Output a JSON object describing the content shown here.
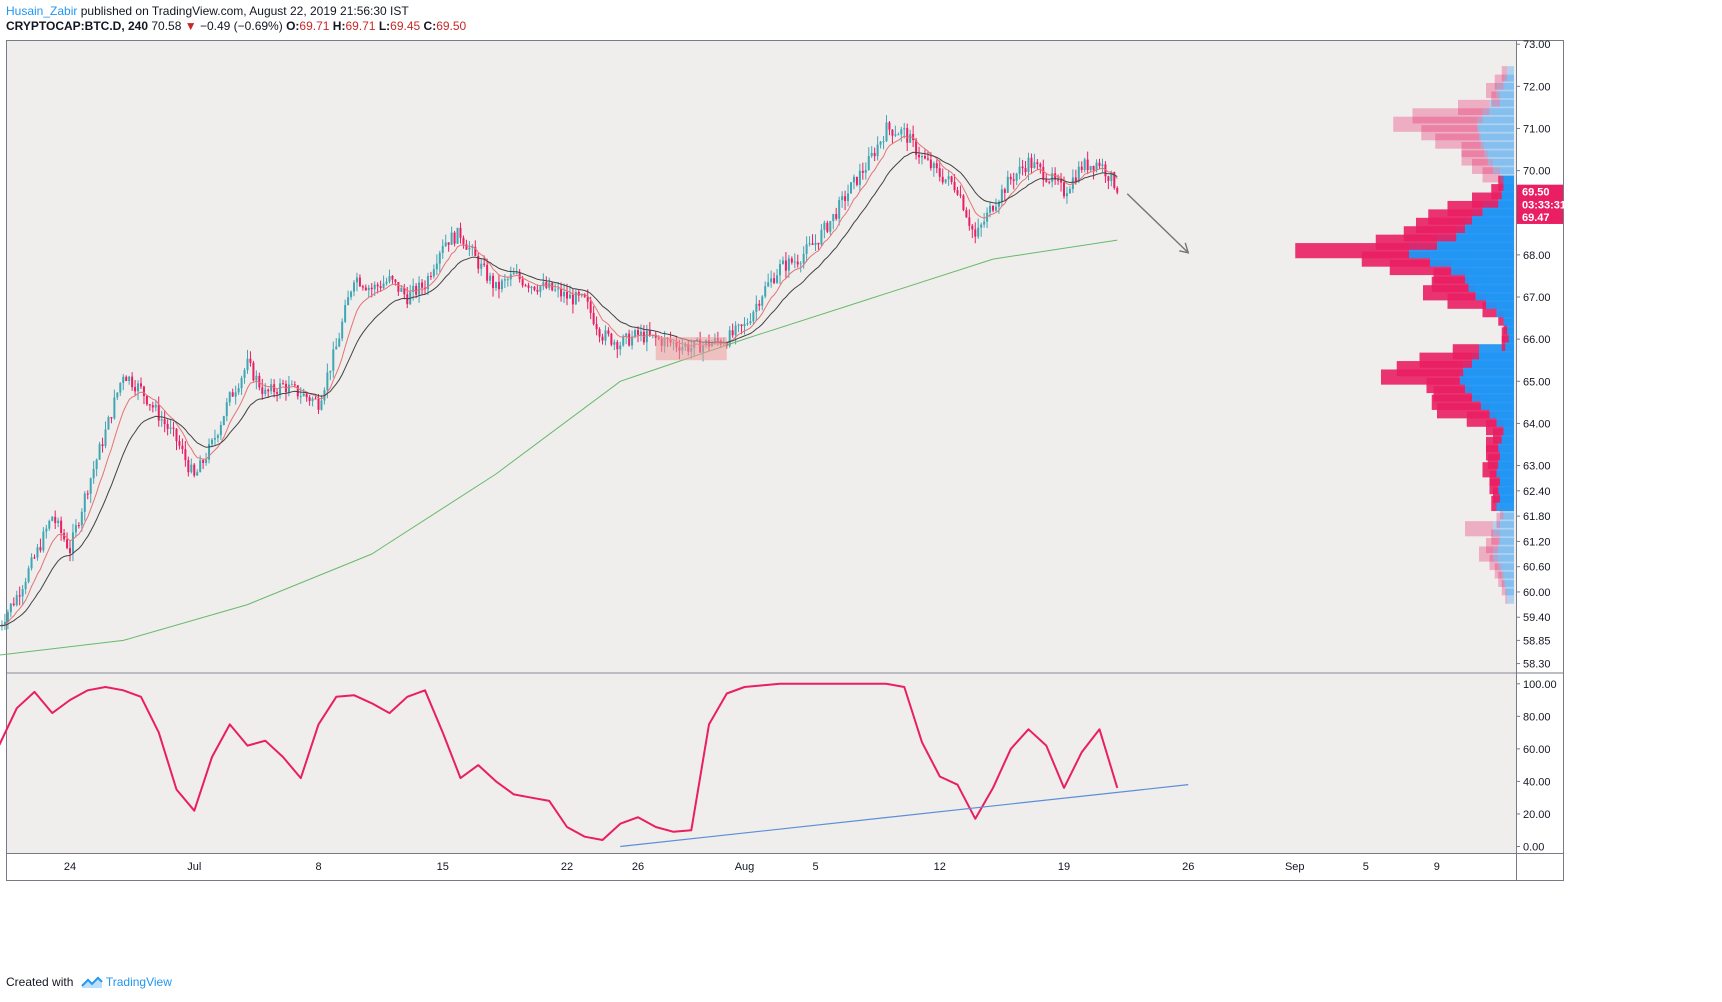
{
  "header": {
    "author": "Husain_Zabir",
    "published": "published on TradingView.com, August 22, 2019 21:56:30 IST",
    "symbol": "CRYPTOCAP:BTC.D, 240",
    "last": "70.58",
    "change": "−0.49 (−0.69%)",
    "open_label": "O:",
    "open": "69.71",
    "high_label": "H:",
    "high": "69.71",
    "low_label": "L:",
    "low": "69.45",
    "close_label": "C:",
    "close": "69.50"
  },
  "footer": {
    "created_with": "Created with",
    "brand": "TradingView"
  },
  "colors": {
    "up": "#26a69a",
    "up_candle": "#3fa7b3",
    "down": "#e91e63",
    "ema_fast": "#e57373",
    "ema_slow": "#424242",
    "ma_long": "#66bb6a",
    "oscillator": "#e91e63",
    "trendline": "#5b8fd8",
    "vp_up": "#2196f3",
    "vp_down": "#e91e63",
    "pane_bg": "#f0eded",
    "price_tag": "#e91e63"
  },
  "chart_data": [
    {
      "type": "candlestick",
      "title": "CRYPTOCAP:BTC.D, 240",
      "x_axis_labels": [
        "24",
        "Jul",
        "8",
        "15",
        "22",
        "26",
        "Aug",
        "5",
        "12",
        "19",
        "26",
        "Sep",
        "5",
        "9"
      ],
      "x_axis_dates": [
        "2019-06-24",
        "2019-07-01",
        "2019-07-08",
        "2019-07-15",
        "2019-07-22",
        "2019-07-26",
        "2019-08-01",
        "2019-08-05",
        "2019-08-12",
        "2019-08-19",
        "2019-08-26",
        "2019-09-01",
        "2019-09-05",
        "2019-09-09"
      ],
      "y_axis_labels": [
        "73.00",
        "72.00",
        "71.00",
        "70.00",
        "69.50",
        "68.00",
        "67.00",
        "66.00",
        "65.00",
        "64.00",
        "63.00",
        "62.40",
        "61.80",
        "61.20",
        "60.60",
        "60.00",
        "59.40",
        "58.85",
        "58.30"
      ],
      "ylim": [
        58.1,
        73.1
      ],
      "price_tags": [
        {
          "label": "69.50",
          "value": 69.5
        },
        {
          "label": "03:33:31",
          "value": 69.2
        },
        {
          "label": "69.47",
          "value": 68.9
        }
      ],
      "close_path": {
        "dates": [
          "2019-06-20",
          "2019-06-21",
          "2019-06-22",
          "2019-06-23",
          "2019-06-24",
          "2019-06-25",
          "2019-06-26",
          "2019-06-27",
          "2019-06-28",
          "2019-06-29",
          "2019-06-30",
          "2019-07-01",
          "2019-07-02",
          "2019-07-03",
          "2019-07-04",
          "2019-07-05",
          "2019-07-06",
          "2019-07-07",
          "2019-07-08",
          "2019-07-09",
          "2019-07-10",
          "2019-07-11",
          "2019-07-12",
          "2019-07-13",
          "2019-07-14",
          "2019-07-15",
          "2019-07-16",
          "2019-07-17",
          "2019-07-18",
          "2019-07-19",
          "2019-07-20",
          "2019-07-21",
          "2019-07-22",
          "2019-07-23",
          "2019-07-24",
          "2019-07-25",
          "2019-07-26",
          "2019-07-27",
          "2019-07-28",
          "2019-07-29",
          "2019-07-30",
          "2019-07-31",
          "2019-08-01",
          "2019-08-02",
          "2019-08-03",
          "2019-08-04",
          "2019-08-05",
          "2019-08-06",
          "2019-08-07",
          "2019-08-08",
          "2019-08-09",
          "2019-08-10",
          "2019-08-11",
          "2019-08-12",
          "2019-08-13",
          "2019-08-14",
          "2019-08-15",
          "2019-08-16",
          "2019-08-17",
          "2019-08-18",
          "2019-08-19",
          "2019-08-20",
          "2019-08-21",
          "2019-08-22"
        ],
        "values": [
          59.2,
          59.9,
          60.8,
          61.8,
          61.0,
          62.5,
          63.8,
          65.2,
          64.8,
          64.2,
          63.6,
          62.7,
          63.5,
          64.6,
          65.4,
          64.7,
          64.9,
          64.7,
          64.5,
          65.8,
          67.5,
          67.2,
          67.4,
          67.0,
          67.3,
          68.3,
          68.5,
          67.8,
          67.2,
          67.5,
          67.3,
          67.2,
          67.0,
          66.9,
          66.1,
          65.9,
          66.1,
          66.0,
          65.9,
          65.8,
          65.9,
          66.0,
          66.3,
          67.1,
          67.7,
          67.9,
          68.3,
          68.9,
          69.6,
          70.2,
          71.0,
          70.9,
          70.3,
          69.9,
          69.6,
          68.4,
          69.2,
          69.8,
          70.2,
          69.9,
          69.5,
          70.1,
          70.2,
          69.6
        ]
      },
      "moving_averages": [
        {
          "kind": "fast EMA",
          "color": "#e57373"
        },
        {
          "kind": "slow EMA",
          "color": "#424242"
        },
        {
          "kind": "long MA",
          "color": "#66bb6a",
          "dates": [
            "2019-06-20",
            "2019-06-27",
            "2019-07-04",
            "2019-07-11",
            "2019-07-18",
            "2019-07-25",
            "2019-08-01",
            "2019-08-08",
            "2019-08-15",
            "2019-08-22"
          ],
          "values": [
            58.5,
            58.85,
            59.7,
            60.9,
            62.8,
            65.0,
            66.0,
            66.95,
            67.9,
            68.35
          ]
        }
      ],
      "annotations": [
        {
          "kind": "box",
          "dates": [
            "2019-07-27",
            "2019-07-31"
          ],
          "values": [
            65.5,
            66.05
          ],
          "color": "#ef9a9a"
        },
        {
          "kind": "arrow",
          "dates": [
            "2019-08-22",
            "2019-08-26"
          ],
          "values": [
            69.45,
            68.05
          ],
          "color": "#757575"
        }
      ],
      "volume_profile_split": 61.95,
      "volume_profile": {
        "prices": [
          59.9,
          60.1,
          60.3,
          60.5,
          60.7,
          60.9,
          61.1,
          61.3,
          61.5,
          61.7,
          61.9,
          62.1,
          62.3,
          62.5,
          62.7,
          62.9,
          63.1,
          63.3,
          63.5,
          63.7,
          63.9,
          64.1,
          64.3,
          64.5,
          64.7,
          64.9,
          65.1,
          65.3,
          65.5,
          65.7,
          65.9,
          66.1,
          66.3,
          66.5,
          66.7,
          66.9,
          67.1,
          67.3,
          67.5,
          67.7,
          67.9,
          68.1,
          68.3,
          68.5,
          68.7,
          68.9,
          69.1,
          69.3,
          69.5,
          69.7,
          69.9,
          70.1,
          70.3,
          70.5,
          70.7,
          70.9,
          71.1,
          71.3,
          71.5,
          71.7,
          71.9,
          72.1,
          72.3
        ],
        "buy": [
          0.04,
          0.05,
          0.06,
          0.07,
          0.09,
          0.12,
          0.09,
          0.08,
          0.12,
          0.08,
          0.06,
          0.1,
          0.08,
          0.09,
          0.08,
          0.1,
          0.09,
          0.08,
          0.09,
          0.07,
          0.06,
          0.1,
          0.14,
          0.19,
          0.24,
          0.28,
          0.31,
          0.29,
          0.24,
          0.2,
          0.05,
          0.03,
          0.04,
          0.06,
          0.1,
          0.16,
          0.22,
          0.26,
          0.28,
          0.36,
          0.48,
          0.6,
          0.44,
          0.33,
          0.28,
          0.24,
          0.18,
          0.09,
          0.07,
          0.06,
          0.08,
          0.12,
          0.15,
          0.17,
          0.19,
          0.2,
          0.21,
          0.18,
          0.14,
          0.08,
          0.1,
          0.06,
          0.04
        ],
        "sell": [
          0.01,
          0.02,
          0.03,
          0.04,
          0.05,
          0.08,
          0.07,
          0.05,
          0.16,
          0.02,
          0.02,
          0.03,
          0.04,
          0.05,
          0.06,
          0.08,
          0.06,
          0.08,
          0.07,
          0.05,
          0.1,
          0.17,
          0.3,
          0.28,
          0.22,
          0.22,
          0.45,
          0.38,
          0.3,
          0.15,
          0.02,
          0.04,
          0.02,
          0.03,
          0.08,
          0.22,
          0.3,
          0.21,
          0.18,
          0.35,
          0.39,
          0.65,
          0.35,
          0.3,
          0.28,
          0.25,
          0.2,
          0.15,
          0.06,
          0.03,
          0.1,
          0.12,
          0.15,
          0.13,
          0.26,
          0.33,
          0.48,
          0.4,
          0.18,
          0.05,
          0.06,
          0.05,
          0.03
        ]
      }
    },
    {
      "type": "line",
      "name": "oscillator",
      "y_axis_labels": [
        "100.00",
        "80.00",
        "60.00",
        "40.00",
        "20.00",
        "0.00"
      ],
      "ylim": [
        -4,
        106
      ],
      "dates": [
        "2019-06-20",
        "2019-06-21",
        "2019-06-22",
        "2019-06-23",
        "2019-06-24",
        "2019-06-25",
        "2019-06-26",
        "2019-06-27",
        "2019-06-28",
        "2019-06-29",
        "2019-06-30",
        "2019-07-01",
        "2019-07-02",
        "2019-07-03",
        "2019-07-04",
        "2019-07-05",
        "2019-07-06",
        "2019-07-07",
        "2019-07-08",
        "2019-07-09",
        "2019-07-10",
        "2019-07-11",
        "2019-07-12",
        "2019-07-13",
        "2019-07-14",
        "2019-07-15",
        "2019-07-16",
        "2019-07-17",
        "2019-07-18",
        "2019-07-19",
        "2019-07-20",
        "2019-07-21",
        "2019-07-22",
        "2019-07-23",
        "2019-07-24",
        "2019-07-25",
        "2019-07-26",
        "2019-07-27",
        "2019-07-28",
        "2019-07-29",
        "2019-07-30",
        "2019-07-31",
        "2019-08-01",
        "2019-08-02",
        "2019-08-03",
        "2019-08-04",
        "2019-08-05",
        "2019-08-06",
        "2019-08-07",
        "2019-08-08",
        "2019-08-09",
        "2019-08-10",
        "2019-08-11",
        "2019-08-12",
        "2019-08-13",
        "2019-08-14",
        "2019-08-15",
        "2019-08-16",
        "2019-08-17",
        "2019-08-18",
        "2019-08-19",
        "2019-08-20",
        "2019-08-21",
        "2019-08-22"
      ],
      "values": [
        62,
        85,
        95,
        82,
        90,
        96,
        98,
        96,
        92,
        70,
        35,
        22,
        55,
        75,
        62,
        65,
        55,
        42,
        75,
        92,
        93,
        88,
        82,
        92,
        96,
        70,
        42,
        50,
        40,
        32,
        30,
        28,
        12,
        6,
        4,
        14,
        18,
        12,
        9,
        10,
        75,
        94,
        98,
        99,
        100,
        100,
        100,
        100,
        100,
        100,
        100,
        98,
        64,
        43,
        38,
        17,
        36,
        60,
        72,
        62,
        36,
        58,
        72,
        36
      ],
      "trendline": {
        "dates": [
          "2019-07-25",
          "2019-08-26"
        ],
        "values": [
          0,
          38
        ]
      }
    }
  ]
}
